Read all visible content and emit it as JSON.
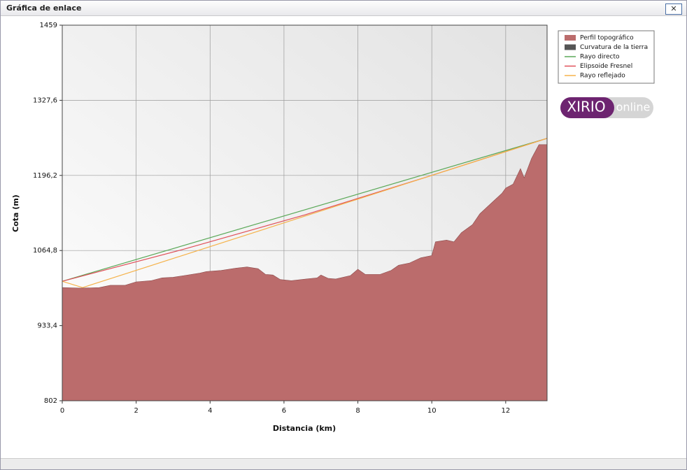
{
  "window_title": "Gráfica de enlace",
  "logo": {
    "brand": "XIRIO",
    "suffix": "online"
  },
  "chart_data": {
    "type": "area",
    "xlabel": "Distancia (km)",
    "ylabel": "Cota (m)",
    "xlim": [
      0,
      13.12
    ],
    "xticks": [
      0,
      2,
      4,
      6,
      8,
      10,
      12
    ],
    "ylim": [
      802,
      1459
    ],
    "yticks": [
      802,
      {
        "value": 933.4,
        "label": "933,4"
      },
      {
        "value": 1064.8,
        "label": "1064,8"
      },
      {
        "value": 1196.2,
        "label": "1196,2"
      },
      {
        "value": 1327.6,
        "label": "1327,6"
      },
      1459
    ],
    "grid": true,
    "legend": "right",
    "series": [
      {
        "name": "Perfil topográfico",
        "type": "area",
        "color": "#bb6c6c",
        "x": [
          0,
          0.5,
          1.0,
          1.3,
          1.7,
          2.0,
          2.4,
          2.7,
          3.0,
          3.3,
          3.7,
          3.9,
          4.3,
          4.7,
          5.0,
          5.3,
          5.5,
          5.7,
          5.9,
          6.2,
          6.6,
          6.9,
          7.0,
          7.2,
          7.4,
          7.8,
          8.0,
          8.2,
          8.6,
          8.9,
          9.1,
          9.4,
          9.7,
          10.0,
          10.1,
          10.4,
          10.6,
          10.8,
          11.1,
          11.3,
          11.6,
          11.9,
          12.0,
          12.2,
          12.4,
          12.5,
          12.7,
          12.9,
          13.12
        ],
        "values": [
          1000,
          999,
          1000,
          1004,
          1004,
          1010,
          1012,
          1017,
          1018,
          1021,
          1025,
          1028,
          1030,
          1034,
          1036,
          1033,
          1023,
          1022,
          1014,
          1012,
          1015,
          1017,
          1022,
          1016,
          1015,
          1021,
          1032,
          1023,
          1023,
          1030,
          1039,
          1043,
          1052,
          1056,
          1080,
          1083,
          1080,
          1096,
          1110,
          1129,
          1147,
          1165,
          1174,
          1181,
          1208,
          1192,
          1226,
          1250,
          1250
        ]
      },
      {
        "name": "Curvatura de la tierra",
        "color": "#555555"
      },
      {
        "name": "Rayo directo",
        "type": "line",
        "color": "#5aa858",
        "x": [
          0,
          13.12
        ],
        "values": [
          1011,
          1261
        ]
      },
      {
        "name": "Elipsoide Fresnel",
        "type": "line",
        "color": "#e0505a",
        "x": [
          0,
          3.28,
          6.56,
          9.84,
          13.12
        ],
        "values": [
          1011,
          1067,
          1127,
          1193,
          1261
        ]
      },
      {
        "name": "Rayo reflejado",
        "type": "line",
        "color": "#f5b24a",
        "x": [
          0,
          0.55,
          13.12
        ],
        "values": [
          1011,
          1000,
          1261
        ]
      }
    ]
  }
}
